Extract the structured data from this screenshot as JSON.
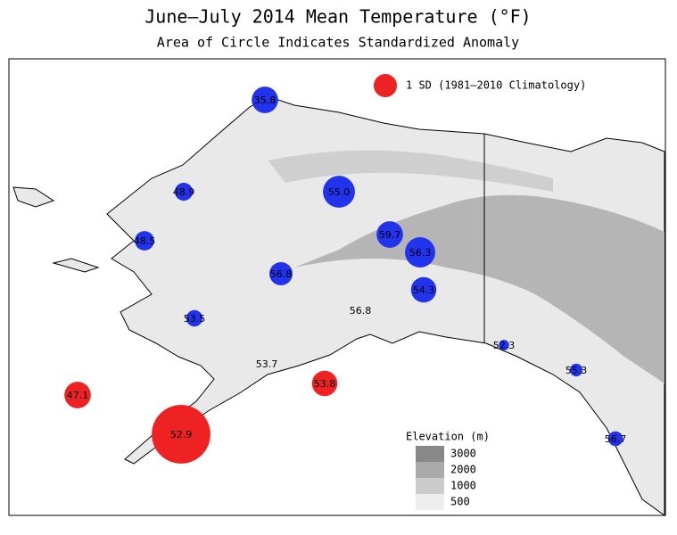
{
  "title": "June–July 2014 Mean Temperature (°F)",
  "subtitle": "Area of Circle Indicates Standardized Anomaly",
  "legend": "1 SD (1981–2010 Climatology)",
  "elevation": {
    "title": "Elevation (m)",
    "levels": [
      3000,
      2000,
      1000,
      500
    ]
  },
  "stations": [
    {
      "temp": 35.8,
      "anomaly": -1.3,
      "color": "#2233ee"
    },
    {
      "temp": 48.9,
      "anomaly": -0.6,
      "color": "#2233ee"
    },
    {
      "temp": 55.0,
      "anomaly": -1.9,
      "color": "#2233ee"
    },
    {
      "temp": 59.7,
      "anomaly": -1.3,
      "color": "#2233ee"
    },
    {
      "temp": 56.3,
      "anomaly": -1.7,
      "color": "#2233ee"
    },
    {
      "temp": 48.5,
      "anomaly": -0.7,
      "color": "#2233ee"
    },
    {
      "temp": 56.8,
      "anomaly": -1.0,
      "color": "#2233ee"
    },
    {
      "temp": 54.3,
      "anomaly": -1.2,
      "color": "#2233ee"
    },
    {
      "temp": 53.5,
      "anomaly": -0.5,
      "color": "#2233ee"
    },
    {
      "temp": 56.8,
      "anomaly": 0,
      "color": "#2233ee"
    },
    {
      "temp": 52.3,
      "anomaly": -0.2,
      "color": "#2233ee"
    },
    {
      "temp": 53.7,
      "anomaly": 0,
      "color": "#2233ee"
    },
    {
      "temp": 47.1,
      "anomaly": 1.3,
      "color": "#ee2222"
    },
    {
      "temp": 53.8,
      "anomaly": 1.2,
      "color": "#ee2222"
    },
    {
      "temp": 55.3,
      "anomaly": -0.3,
      "color": "#2233ee"
    },
    {
      "temp": 52.9,
      "anomaly": 6.4,
      "color": "#ee2222"
    },
    {
      "temp": 56.7,
      "anomaly": -0.4,
      "color": "#2233ee"
    }
  ]
}
